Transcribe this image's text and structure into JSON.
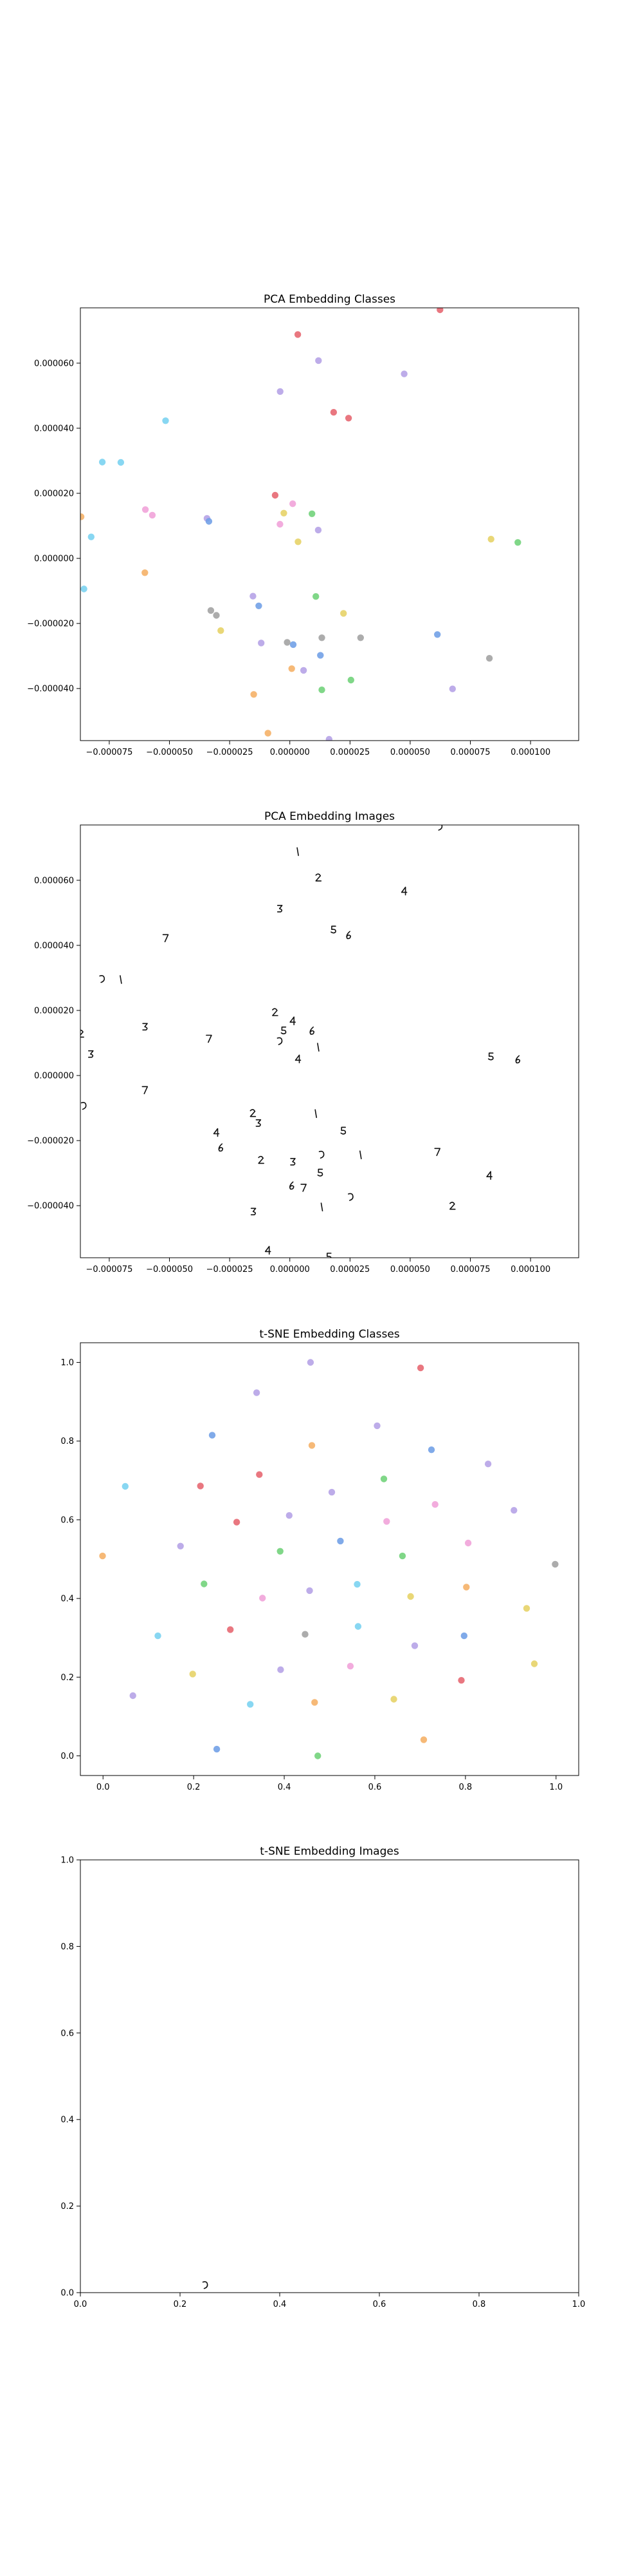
{
  "chart_data": [
    {
      "type": "scatter",
      "title": "PCA Embedding Classes",
      "xlabel": "",
      "ylabel": "",
      "grid": false,
      "xlim": [
        -8.7e-05,
        0.00012
      ],
      "ylim": [
        -5.6e-05,
        7.7e-05
      ],
      "xticks": [
        -7.5e-05,
        -5e-05,
        -2.5e-05,
        0.0,
        2.5e-05,
        5e-05,
        7.5e-05,
        0.0001
      ],
      "xtick_labels": [
        "−0.000075",
        "−0.000050",
        "−0.000025",
        "0.000000",
        "0.000025",
        "0.000050",
        "0.000075",
        "0.000100"
      ],
      "yticks": [
        -4e-05,
        -2e-05,
        0.0,
        2e-05,
        4e-05,
        6e-05
      ],
      "ytick_labels": [
        "−0.000040",
        "−0.000020",
        "0.000000",
        "0.000020",
        "0.000040",
        "0.000060"
      ],
      "points": [
        {
          "x": 6.24e-05,
          "y": 7.64e-05,
          "color": "#e6646e"
        },
        {
          "x": 3.3e-06,
          "y": 6.88e-05,
          "color": "#e6646e"
        },
        {
          "x": 1.19e-05,
          "y": 6.08e-05,
          "color": "#b4a0e6"
        },
        {
          "x": -4e-06,
          "y": 5.13e-05,
          "color": "#b4a0e6"
        },
        {
          "x": 4.75e-05,
          "y": 5.67e-05,
          "color": "#b4a0e6"
        },
        {
          "x": 1.82e-05,
          "y": 4.49e-05,
          "color": "#e6646e"
        },
        {
          "x": 2.44e-05,
          "y": 4.31e-05,
          "color": "#e6646e"
        },
        {
          "x": -5.16e-05,
          "y": 4.23e-05,
          "color": "#78d2f0"
        },
        {
          "x": -7.79e-05,
          "y": 2.96e-05,
          "color": "#78d2f0"
        },
        {
          "x": -7.02e-05,
          "y": 2.95e-05,
          "color": "#78d2f0"
        },
        {
          "x": -6.1e-06,
          "y": 1.94e-05,
          "color": "#e6646e"
        },
        {
          "x": -6e-05,
          "y": 1.5e-05,
          "color": "#f0a0d8"
        },
        {
          "x": -5.71e-05,
          "y": 1.33e-05,
          "color": "#f0a0d8"
        },
        {
          "x": 1.2e-06,
          "y": 1.68e-05,
          "color": "#f0a0d8"
        },
        {
          "x": -2.5e-06,
          "y": 1.39e-05,
          "color": "#e6d264"
        },
        {
          "x": 9.2e-06,
          "y": 1.37e-05,
          "color": "#6ed278"
        },
        {
          "x": -3.44e-05,
          "y": 1.23e-05,
          "color": "#b4a0e6"
        },
        {
          "x": -3.36e-05,
          "y": 1.14e-05,
          "color": "#6e9ee6"
        },
        {
          "x": -4.1e-06,
          "y": 1.05e-05,
          "color": "#f0a0d8"
        },
        {
          "x": 1.18e-05,
          "y": 8.7e-06,
          "color": "#b4a0e6"
        },
        {
          "x": -8.67e-05,
          "y": 1.28e-05,
          "color": "#f5af64"
        },
        {
          "x": -8.25e-05,
          "y": 6.6e-06,
          "color": "#78d2f0"
        },
        {
          "x": 3.4e-06,
          "y": 5.1e-06,
          "color": "#e6d264"
        },
        {
          "x": 8.36e-05,
          "y": 5.9e-06,
          "color": "#e6d264"
        },
        {
          "x": 9.47e-05,
          "y": 4.9e-06,
          "color": "#6ed278"
        },
        {
          "x": -6.02e-05,
          "y": -4.4e-06,
          "color": "#f5af64"
        },
        {
          "x": -8.55e-05,
          "y": -9.4e-06,
          "color": "#78d2f0"
        },
        {
          "x": 1.08e-05,
          "y": -1.17e-05,
          "color": "#6ed278"
        },
        {
          "x": -1.53e-05,
          "y": -1.16e-05,
          "color": "#b4a0e6"
        },
        {
          "x": -1.29e-05,
          "y": -1.46e-05,
          "color": "#6e9ee6"
        },
        {
          "x": -3.28e-05,
          "y": -1.6e-05,
          "color": "#a0a0a0"
        },
        {
          "x": -3.05e-05,
          "y": -1.75e-05,
          "color": "#a0a0a0"
        },
        {
          "x": 2.23e-05,
          "y": -1.69e-05,
          "color": "#e6d264"
        },
        {
          "x": -2.87e-05,
          "y": -2.22e-05,
          "color": "#e6d264"
        },
        {
          "x": 6.13e-05,
          "y": -2.34e-05,
          "color": "#6e9ee6"
        },
        {
          "x": 1.33e-05,
          "y": -2.44e-05,
          "color": "#a0a0a0"
        },
        {
          "x": 2.94e-05,
          "y": -2.44e-05,
          "color": "#a0a0a0"
        },
        {
          "x": -1.19e-05,
          "y": -2.6e-05,
          "color": "#b4a0e6"
        },
        {
          "x": -1.1e-06,
          "y": -2.58e-05,
          "color": "#a0a0a0"
        },
        {
          "x": 1.4e-06,
          "y": -2.65e-05,
          "color": "#6e9ee6"
        },
        {
          "x": 8.29e-05,
          "y": -3.07e-05,
          "color": "#a0a0a0"
        },
        {
          "x": 1.27e-05,
          "y": -2.98e-05,
          "color": "#6e9ee6"
        },
        {
          "x": 8e-07,
          "y": -3.39e-05,
          "color": "#f5af64"
        },
        {
          "x": 5.7e-06,
          "y": -3.44e-05,
          "color": "#b4a0e6"
        },
        {
          "x": 2.54e-05,
          "y": -3.74e-05,
          "color": "#6ed278"
        },
        {
          "x": 1.33e-05,
          "y": -4.04e-05,
          "color": "#6ed278"
        },
        {
          "x": 6.76e-05,
          "y": -4.01e-05,
          "color": "#b4a0e6"
        },
        {
          "x": -1.5e-05,
          "y": -4.18e-05,
          "color": "#f5af64"
        },
        {
          "x": -9.1e-06,
          "y": -5.37e-05,
          "color": "#f5af64"
        },
        {
          "x": 1.63e-05,
          "y": -5.56e-05,
          "color": "#b4a0e6"
        }
      ]
    },
    {
      "type": "scatter",
      "title": "PCA Embedding Images",
      "xlabel": "",
      "ylabel": "",
      "grid": false,
      "xlim": [
        -8.7e-05,
        0.00012
      ],
      "ylim": [
        -5.6e-05,
        7.7e-05
      ],
      "xticks": [
        -7.5e-05,
        -5e-05,
        -2.5e-05,
        0.0,
        2.5e-05,
        5e-05,
        7.5e-05,
        0.0001
      ],
      "xtick_labels": [
        "−0.000075",
        "−0.000050",
        "−0.000025",
        "0.000000",
        "0.000025",
        "0.000050",
        "0.000075",
        "0.000100"
      ],
      "yticks": [
        -4e-05,
        -2e-05,
        0.0,
        2e-05,
        4e-05,
        6e-05
      ],
      "ytick_labels": [
        "−0.000040",
        "−0.000020",
        "0.000000",
        "0.000020",
        "0.000040",
        "0.000060"
      ],
      "marker": "small handwritten-digit thumbnails at each point",
      "points": [
        {
          "x": 6.24e-05,
          "y": 7.64e-05
        },
        {
          "x": 3.3e-06,
          "y": 6.88e-05
        },
        {
          "x": 1.19e-05,
          "y": 6.08e-05
        },
        {
          "x": -4e-06,
          "y": 5.13e-05
        },
        {
          "x": 4.75e-05,
          "y": 5.67e-05
        },
        {
          "x": 1.82e-05,
          "y": 4.49e-05
        },
        {
          "x": 2.44e-05,
          "y": 4.31e-05
        },
        {
          "x": -5.16e-05,
          "y": 4.23e-05
        },
        {
          "x": -7.79e-05,
          "y": 2.96e-05
        },
        {
          "x": -7.02e-05,
          "y": 2.95e-05
        },
        {
          "x": -6.1e-06,
          "y": 1.94e-05
        },
        {
          "x": -6e-05,
          "y": 1.5e-05
        },
        {
          "x": 1.2e-06,
          "y": 1.68e-05
        },
        {
          "x": -2.5e-06,
          "y": 1.39e-05
        },
        {
          "x": 9.2e-06,
          "y": 1.37e-05
        },
        {
          "x": -3.36e-05,
          "y": 1.14e-05
        },
        {
          "x": -4.1e-06,
          "y": 1.05e-05
        },
        {
          "x": 1.18e-05,
          "y": 8.7e-06
        },
        {
          "x": -8.67e-05,
          "y": 1.28e-05
        },
        {
          "x": -8.25e-05,
          "y": 6.6e-06
        },
        {
          "x": 3.4e-06,
          "y": 5.1e-06
        },
        {
          "x": 8.36e-05,
          "y": 5.9e-06
        },
        {
          "x": 9.47e-05,
          "y": 4.9e-06
        },
        {
          "x": -6.02e-05,
          "y": -4.4e-06
        },
        {
          "x": -8.55e-05,
          "y": -9.4e-06
        },
        {
          "x": 1.08e-05,
          "y": -1.17e-05
        },
        {
          "x": -1.53e-05,
          "y": -1.16e-05
        },
        {
          "x": -1.29e-05,
          "y": -1.46e-05
        },
        {
          "x": -3.05e-05,
          "y": -1.75e-05
        },
        {
          "x": 2.23e-05,
          "y": -1.69e-05
        },
        {
          "x": -2.87e-05,
          "y": -2.22e-05
        },
        {
          "x": 6.13e-05,
          "y": -2.34e-05
        },
        {
          "x": 1.33e-05,
          "y": -2.44e-05
        },
        {
          "x": 2.94e-05,
          "y": -2.44e-05
        },
        {
          "x": -1.19e-05,
          "y": -2.6e-05
        },
        {
          "x": 1.4e-06,
          "y": -2.65e-05
        },
        {
          "x": 8.29e-05,
          "y": -3.07e-05
        },
        {
          "x": 1.27e-05,
          "y": -2.98e-05
        },
        {
          "x": 8e-07,
          "y": -3.39e-05
        },
        {
          "x": 5.7e-06,
          "y": -3.44e-05
        },
        {
          "x": 2.54e-05,
          "y": -3.74e-05
        },
        {
          "x": 1.33e-05,
          "y": -4.04e-05
        },
        {
          "x": 6.76e-05,
          "y": -4.01e-05
        },
        {
          "x": -1.5e-05,
          "y": -4.18e-05
        },
        {
          "x": -9.1e-06,
          "y": -5.37e-05
        },
        {
          "x": 1.63e-05,
          "y": -5.56e-05
        }
      ]
    },
    {
      "type": "scatter",
      "title": "t-SNE Embedding Classes",
      "xlabel": "",
      "ylabel": "",
      "grid": false,
      "xlim": [
        -0.05,
        1.05
      ],
      "ylim": [
        -0.05,
        1.05
      ],
      "xticks": [
        0.0,
        0.2,
        0.4,
        0.6,
        0.8,
        1.0
      ],
      "xtick_labels": [
        "0.0",
        "0.2",
        "0.4",
        "0.6",
        "0.8",
        "1.0"
      ],
      "yticks": [
        0.0,
        0.2,
        0.4,
        0.6,
        0.8,
        1.0
      ],
      "ytick_labels": [
        "0.0",
        "0.2",
        "0.4",
        "0.6",
        "0.8",
        "1.0"
      ],
      "points": [
        {
          "x": 0.458,
          "y": 1.0,
          "color": "#b4a0e6"
        },
        {
          "x": 0.701,
          "y": 0.986,
          "color": "#e6646e"
        },
        {
          "x": 0.339,
          "y": 0.923,
          "color": "#b4a0e6"
        },
        {
          "x": 0.605,
          "y": 0.839,
          "color": "#b4a0e6"
        },
        {
          "x": 0.241,
          "y": 0.815,
          "color": "#6e9ee6"
        },
        {
          "x": 0.461,
          "y": 0.789,
          "color": "#f5af64"
        },
        {
          "x": 0.725,
          "y": 0.778,
          "color": "#6e9ee6"
        },
        {
          "x": 0.85,
          "y": 0.742,
          "color": "#b4a0e6"
        },
        {
          "x": 0.345,
          "y": 0.715,
          "color": "#e6646e"
        },
        {
          "x": 0.62,
          "y": 0.704,
          "color": "#6ed278"
        },
        {
          "x": 0.049,
          "y": 0.685,
          "color": "#78d2f0"
        },
        {
          "x": 0.215,
          "y": 0.686,
          "color": "#e6646e"
        },
        {
          "x": 0.505,
          "y": 0.67,
          "color": "#b4a0e6"
        },
        {
          "x": 0.733,
          "y": 0.639,
          "color": "#f0a0d8"
        },
        {
          "x": 0.907,
          "y": 0.624,
          "color": "#b4a0e6"
        },
        {
          "x": 0.411,
          "y": 0.611,
          "color": "#b4a0e6"
        },
        {
          "x": 0.295,
          "y": 0.594,
          "color": "#e6646e"
        },
        {
          "x": 0.626,
          "y": 0.596,
          "color": "#f0a0d8"
        },
        {
          "x": 0.524,
          "y": 0.546,
          "color": "#6e9ee6"
        },
        {
          "x": 0.806,
          "y": 0.541,
          "color": "#f0a0d8"
        },
        {
          "x": 0.171,
          "y": 0.533,
          "color": "#b4a0e6"
        },
        {
          "x": 0.391,
          "y": 0.52,
          "color": "#6ed278"
        },
        {
          "x": -0.001,
          "y": 0.508,
          "color": "#f5af64"
        },
        {
          "x": 0.661,
          "y": 0.508,
          "color": "#6ed278"
        },
        {
          "x": 0.998,
          "y": 0.487,
          "color": "#a0a0a0"
        },
        {
          "x": 0.561,
          "y": 0.436,
          "color": "#78d2f0"
        },
        {
          "x": 0.223,
          "y": 0.437,
          "color": "#6ed278"
        },
        {
          "x": 0.802,
          "y": 0.429,
          "color": "#f5af64"
        },
        {
          "x": 0.456,
          "y": 0.42,
          "color": "#b4a0e6"
        },
        {
          "x": 0.352,
          "y": 0.401,
          "color": "#f0a0d8"
        },
        {
          "x": 0.679,
          "y": 0.405,
          "color": "#e6d264"
        },
        {
          "x": 0.935,
          "y": 0.375,
          "color": "#e6d264"
        },
        {
          "x": 0.563,
          "y": 0.329,
          "color": "#78d2f0"
        },
        {
          "x": 0.281,
          "y": 0.321,
          "color": "#e6646e"
        },
        {
          "x": 0.446,
          "y": 0.309,
          "color": "#a0a0a0"
        },
        {
          "x": 0.121,
          "y": 0.305,
          "color": "#78d2f0"
        },
        {
          "x": 0.797,
          "y": 0.305,
          "color": "#6e9ee6"
        },
        {
          "x": 0.688,
          "y": 0.28,
          "color": "#b4a0e6"
        },
        {
          "x": 0.952,
          "y": 0.234,
          "color": "#e6d264"
        },
        {
          "x": 0.546,
          "y": 0.228,
          "color": "#f0a0d8"
        },
        {
          "x": 0.392,
          "y": 0.219,
          "color": "#b4a0e6"
        },
        {
          "x": 0.198,
          "y": 0.208,
          "color": "#e6d264"
        },
        {
          "x": 0.791,
          "y": 0.192,
          "color": "#e6646e"
        },
        {
          "x": 0.066,
          "y": 0.153,
          "color": "#b4a0e6"
        },
        {
          "x": 0.642,
          "y": 0.144,
          "color": "#e6d264"
        },
        {
          "x": 0.467,
          "y": 0.136,
          "color": "#f5af64"
        },
        {
          "x": 0.325,
          "y": 0.131,
          "color": "#78d2f0"
        },
        {
          "x": 0.708,
          "y": 0.041,
          "color": "#f5af64"
        },
        {
          "x": 0.251,
          "y": 0.017,
          "color": "#6e9ee6"
        },
        {
          "x": 0.474,
          "y": 0.0,
          "color": "#6ed278"
        }
      ]
    },
    {
      "type": "scatter",
      "title": "t-SNE Embedding Images",
      "xlabel": "",
      "ylabel": "",
      "grid": false,
      "xlim": [
        0.0,
        1.0
      ],
      "ylim": [
        0.0,
        1.0
      ],
      "xticks": [
        0.0,
        0.2,
        0.4,
        0.6,
        0.8,
        1.0
      ],
      "xtick_labels": [
        "0.0",
        "0.2",
        "0.4",
        "0.6",
        "0.8",
        "1.0"
      ],
      "yticks": [
        0.0,
        0.2,
        0.4,
        0.6,
        0.8,
        1.0
      ],
      "ytick_labels": [
        "0.0",
        "0.2",
        "0.4",
        "0.6",
        "0.8",
        "1.0"
      ],
      "marker": "small handwritten-digit thumbnails at each point",
      "points": [
        {
          "x": 0.251,
          "y": 0.017
        }
      ]
    }
  ]
}
